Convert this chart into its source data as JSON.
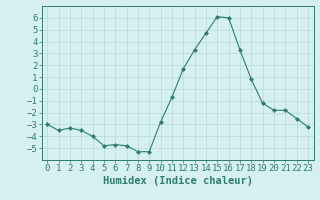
{
  "x": [
    0,
    1,
    2,
    3,
    4,
    5,
    6,
    7,
    8,
    9,
    10,
    11,
    12,
    13,
    14,
    15,
    16,
    17,
    18,
    19,
    20,
    21,
    22,
    23
  ],
  "y": [
    -3.0,
    -3.5,
    -3.3,
    -3.5,
    -4.0,
    -4.8,
    -4.7,
    -4.8,
    -5.3,
    -5.3,
    -2.8,
    -0.7,
    1.7,
    3.3,
    4.7,
    6.1,
    6.0,
    3.3,
    0.8,
    -1.2,
    -1.8,
    -1.8,
    -2.5,
    -3.2
  ],
  "line_color": "#2e7d6e",
  "marker": "D",
  "marker_size": 2.0,
  "bg_color": "#d6f0ef",
  "grid_color": "#b8d8d6",
  "xlabel": "Humidex (Indice chaleur)",
  "ylim": [
    -6,
    7
  ],
  "xlim": [
    -0.5,
    23.5
  ],
  "yticks": [
    -5,
    -4,
    -3,
    -2,
    -1,
    0,
    1,
    2,
    3,
    4,
    5,
    6
  ],
  "xticks": [
    0,
    1,
    2,
    3,
    4,
    5,
    6,
    7,
    8,
    9,
    10,
    11,
    12,
    13,
    14,
    15,
    16,
    17,
    18,
    19,
    20,
    21,
    22,
    23
  ],
  "tick_fontsize": 6.5,
  "xlabel_fontsize": 7.5,
  "label_color": "#2e7d6e"
}
